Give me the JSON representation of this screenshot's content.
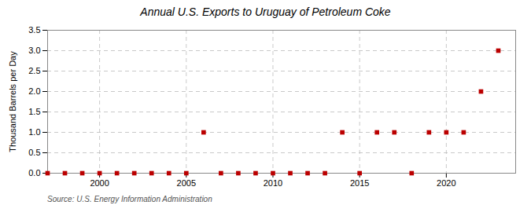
{
  "chart_data": {
    "type": "scatter",
    "title": "Annual U.S. Exports to Uruguay of Petroleum Coke",
    "ylabel": "Thousand Barrels per Day",
    "source": "Source: U.S. Energy Information Administration",
    "x": [
      1997,
      1998,
      1999,
      2000,
      2001,
      2002,
      2003,
      2004,
      2005,
      2006,
      2007,
      2008,
      2009,
      2010,
      2011,
      2012,
      2013,
      2014,
      2015,
      2016,
      2017,
      2018,
      2019,
      2020,
      2021,
      2022,
      2023
    ],
    "values": [
      0.0,
      0.0,
      0.0,
      0.0,
      0.0,
      0.0,
      0.0,
      0.0,
      0.0,
      1.0,
      0.0,
      0.0,
      0.0,
      0.0,
      0.0,
      0.0,
      0.0,
      1.0,
      0.0,
      1.0,
      1.0,
      0.0,
      1.0,
      1.0,
      1.0,
      2.0,
      3.0
    ],
    "color": "#bb0000",
    "marker": "square",
    "xlim": [
      1997,
      2024
    ],
    "xticks": [
      2000,
      2005,
      2010,
      2015,
      2020
    ],
    "ylim": [
      0,
      3.5
    ],
    "yticks": [
      {
        "value": 0,
        "label": "0.0"
      },
      0.5,
      {
        "value": 1,
        "label": "1.0"
      },
      1.5,
      {
        "value": 2,
        "label": "2.0"
      },
      2.5,
      {
        "value": 3,
        "label": "3.0"
      },
      3.5
    ],
    "grid": true
  }
}
